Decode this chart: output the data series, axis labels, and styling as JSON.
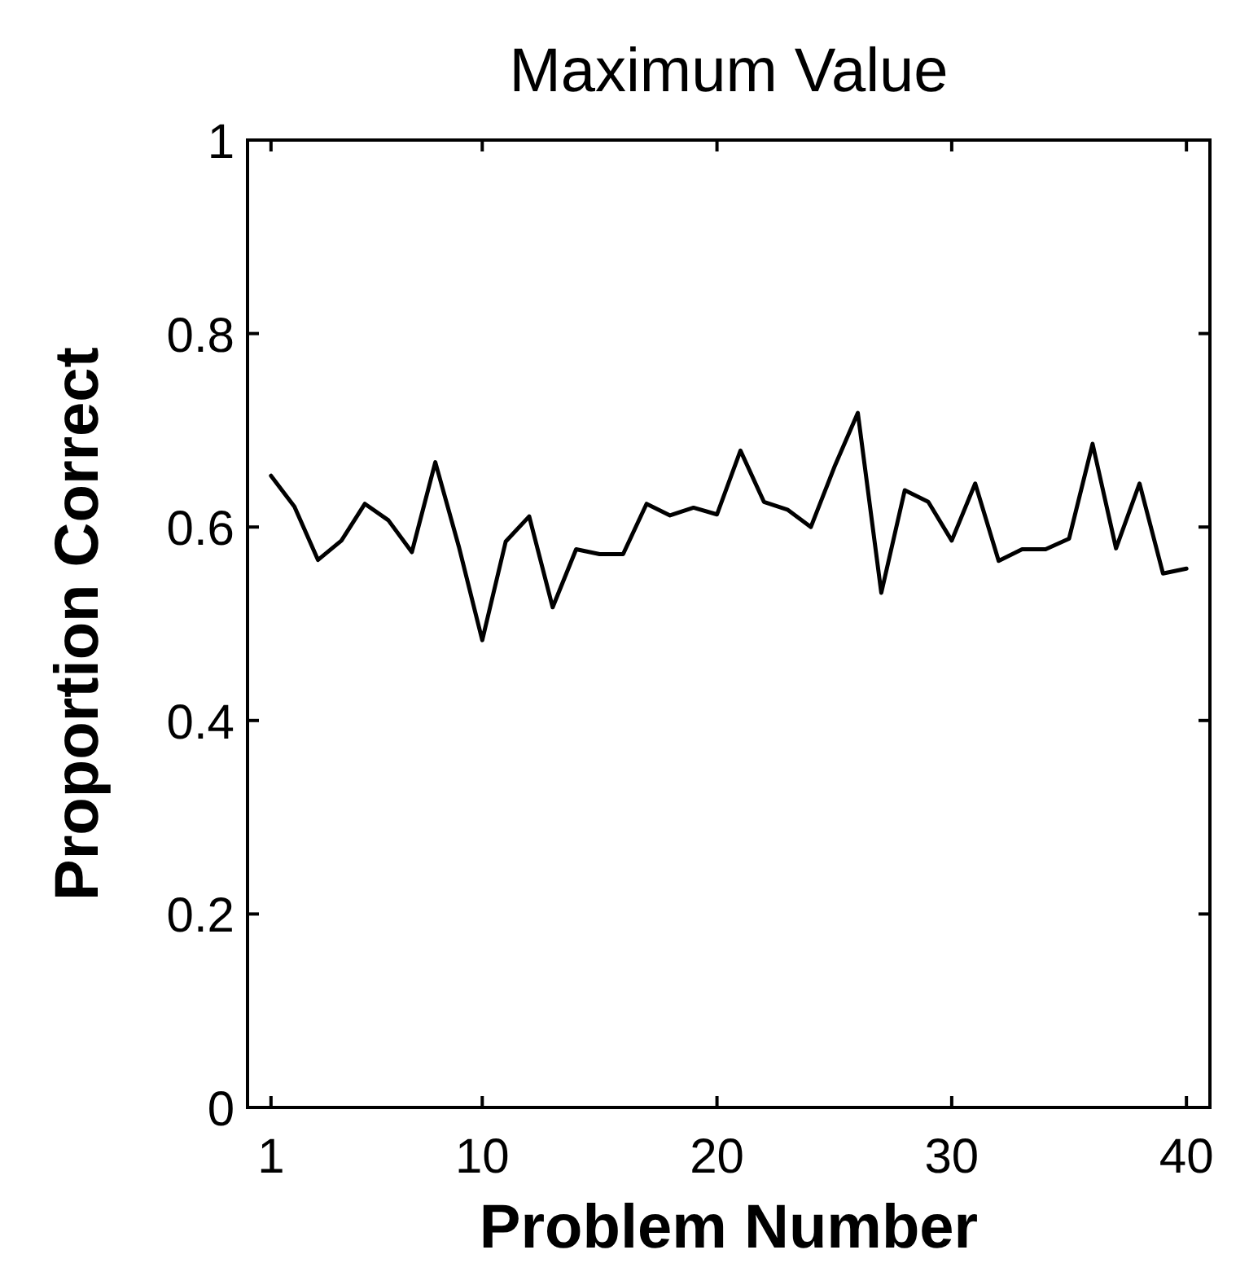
{
  "chart_data": {
    "type": "line",
    "title": "Maximum Value",
    "xlabel": "Problem Number",
    "ylabel": "Proportion Correct",
    "x": [
      1,
      2,
      3,
      4,
      5,
      6,
      7,
      8,
      9,
      10,
      11,
      12,
      13,
      14,
      15,
      16,
      17,
      18,
      19,
      20,
      21,
      22,
      23,
      24,
      25,
      26,
      27,
      28,
      29,
      30,
      31,
      32,
      33,
      34,
      35,
      36,
      37,
      38,
      39,
      40
    ],
    "series": [
      {
        "color": "#000000",
        "values": [
          0.653,
          0.621,
          0.566,
          0.586,
          0.624,
          0.607,
          0.574,
          0.667,
          0.58,
          0.483,
          0.585,
          0.611,
          0.517,
          0.577,
          0.572,
          0.572,
          0.624,
          0.612,
          0.62,
          0.613,
          0.679,
          0.626,
          0.618,
          0.6,
          0.662,
          0.718,
          0.532,
          0.638,
          0.626,
          0.586,
          0.645,
          0.565,
          0.577,
          0.577,
          0.588,
          0.686,
          0.578,
          0.645,
          0.552,
          0.557
        ]
      }
    ],
    "xlim": [
      0,
      41
    ],
    "xticks": [
      1,
      10,
      20,
      30,
      40
    ],
    "ylim": [
      0,
      1
    ],
    "yticks": [
      0,
      0.2,
      0.4,
      0.6,
      0.8,
      1
    ],
    "grid": false
  }
}
